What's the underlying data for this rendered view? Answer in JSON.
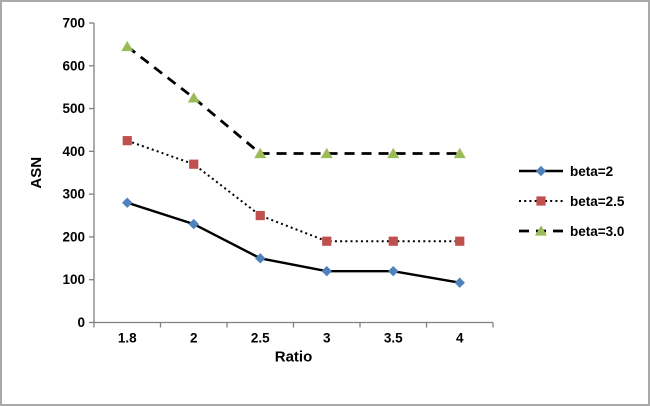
{
  "chart_data": {
    "type": "line",
    "title": "",
    "xlabel": "Ratio",
    "ylabel": "ASN",
    "x_categories": [
      "1.8",
      "2",
      "2.5",
      "3",
      "3.5",
      "4"
    ],
    "ylim": [
      0,
      700
    ],
    "ytick_step": 100,
    "ytick_labels": [
      "0",
      "100",
      "200",
      "300",
      "400",
      "500",
      "600",
      "700"
    ],
    "grid": false,
    "legend_position": "right",
    "series": [
      {
        "name": "beta=2",
        "values": [
          280,
          230,
          150,
          120,
          120,
          93
        ],
        "marker": "diamond",
        "marker_color": "#4F81BD",
        "line_style": "solid",
        "line_color": "#000000"
      },
      {
        "name": "beta=2.5",
        "values": [
          425,
          370,
          250,
          190,
          190,
          190
        ],
        "marker": "square",
        "marker_color": "#C0504D",
        "line_style": "dotted",
        "line_color": "#000000"
      },
      {
        "name": "beta=3.0",
        "values": [
          645,
          525,
          395,
          395,
          395,
          395
        ],
        "marker": "triangle",
        "marker_color": "#9BBB59",
        "line_style": "dashed",
        "line_color": "#000000"
      }
    ],
    "axis_color": "#808080",
    "tick_label_color": "#000000",
    "frame_border_color": "#a9a9a9",
    "background_color": "#ffffff"
  }
}
